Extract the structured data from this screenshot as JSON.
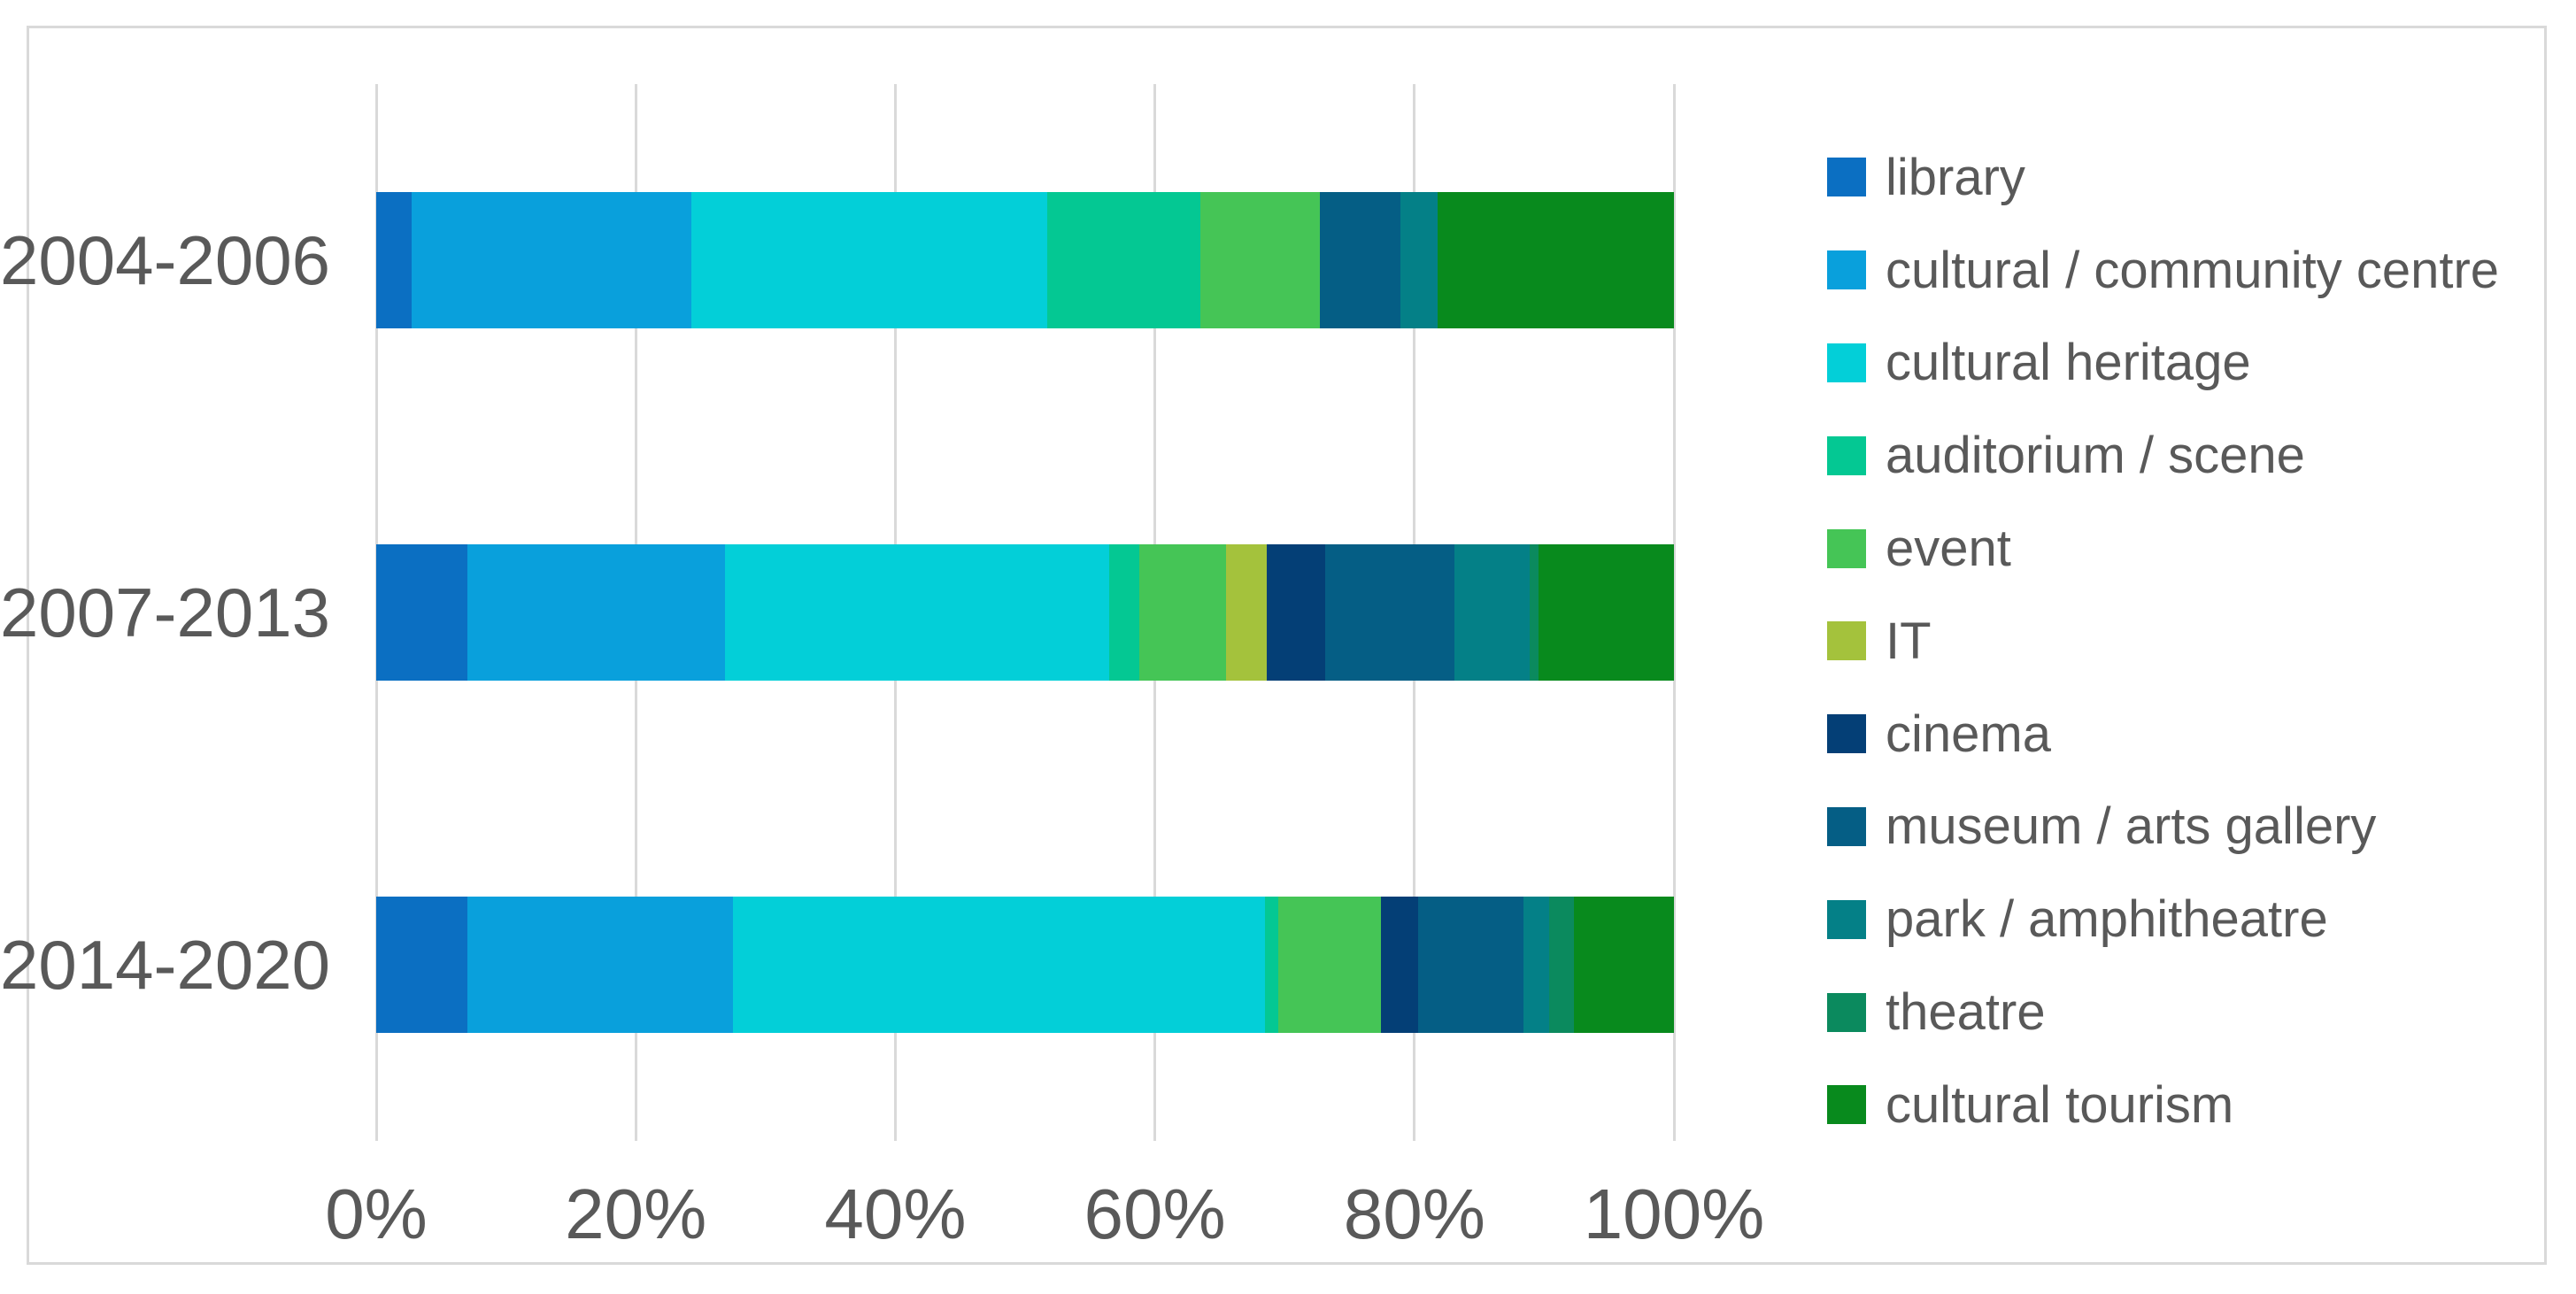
{
  "page": {
    "background": "#ffffff",
    "frame_border_color": "#d9d9d9",
    "gridline_color": "#d9d9d9",
    "text_color": "#595959"
  },
  "chart_data": {
    "type": "bar",
    "subtype": "horizontal-stacked-100",
    "title": "",
    "xlabel": "",
    "ylabel": "",
    "grid": true,
    "legend_position": "right",
    "x_axis": {
      "min": 0,
      "max": 100,
      "tick_labels": [
        "0%",
        "20%",
        "40%",
        "60%",
        "80%",
        "100%"
      ]
    },
    "categories": [
      "2004-2006",
      "2007-2013",
      "2014-2020"
    ],
    "series": [
      {
        "name": "library",
        "color": "#0b6fc2",
        "values": [
          2.7,
          7.0,
          7.0
        ]
      },
      {
        "name": "cultural / community centre",
        "color": "#09a0dc",
        "values": [
          21.6,
          19.9,
          20.5
        ]
      },
      {
        "name": "cultural heritage",
        "color": "#03cfd8",
        "values": [
          27.4,
          29.6,
          41.0
        ]
      },
      {
        "name": "auditorium / scene",
        "color": "#04c893",
        "values": [
          11.8,
          2.3,
          1.0
        ]
      },
      {
        "name": "event",
        "color": "#45c556",
        "values": [
          9.2,
          6.7,
          7.9
        ]
      },
      {
        "name": "IT",
        "color": "#a4c23c",
        "values": [
          0,
          3.1,
          0
        ]
      },
      {
        "name": "cinema",
        "color": "#043f76",
        "values": [
          0,
          4.5,
          2.9
        ]
      },
      {
        "name": "museum / arts gallery",
        "color": "#055e85",
        "values": [
          6.2,
          10.0,
          8.1
        ]
      },
      {
        "name": "park / amphitheatre",
        "color": "#048087",
        "values": [
          2.9,
          5.8,
          2.0
        ]
      },
      {
        "name": "theatre",
        "color": "#0b8a5e",
        "values": [
          0,
          0.7,
          1.9
        ]
      },
      {
        "name": "cultural tourism",
        "color": "#088a1d",
        "values": [
          18.2,
          10.4,
          7.7
        ]
      }
    ]
  }
}
